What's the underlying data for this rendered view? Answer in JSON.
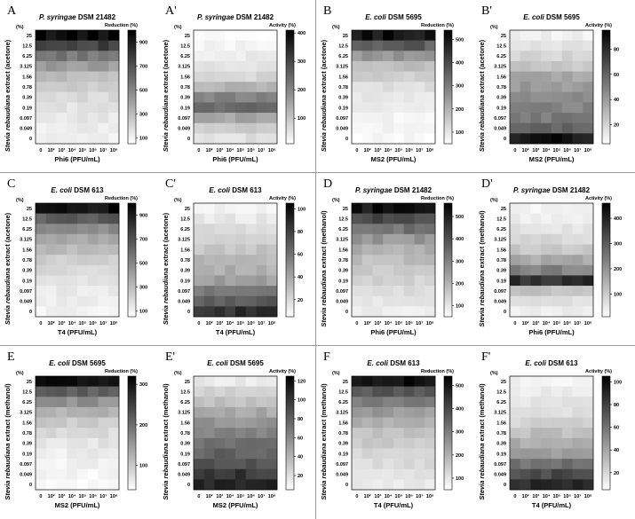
{
  "y_ticks": [
    "25",
    "12.5",
    "6.25",
    "3.125",
    "1.56",
    "0.78",
    "0.39",
    "0.19",
    "0.097",
    "0.049",
    "0"
  ],
  "x_ticks": [
    "0",
    "10²",
    "10³",
    "10⁴",
    "10⁵",
    "10⁶",
    "10⁷",
    "10⁸"
  ],
  "y_unit": "(%)",
  "chart_data": [
    {
      "type": "heatmap",
      "panel_label": "A",
      "title": "P. syringae DSM 21482",
      "xlabel": "Phi6 (PFU/mL)",
      "ylabel": "Stevia rebaudiana extract (acetone)",
      "colorbar_label": "Reduction (%)",
      "colorbar_ticks": [
        "900",
        "700",
        "500",
        "300",
        "100"
      ],
      "vmin": 50,
      "vmax": 1000,
      "row_values": [
        960,
        760,
        560,
        420,
        300,
        230,
        190,
        160,
        140,
        120,
        100
      ]
    },
    {
      "type": "heatmap",
      "panel_label": "A'",
      "title": "P. syringae DSM 21482",
      "xlabel": "Phi6 (PFU/mL)",
      "ylabel": "Stevia rebaudiana extract (acetone)",
      "colorbar_label": "Activity (%)",
      "colorbar_ticks": [
        "400",
        "300",
        "200",
        "100"
      ],
      "vmin": 10,
      "vmax": 410,
      "row_values": [
        20,
        30,
        40,
        55,
        75,
        130,
        200,
        240,
        150,
        90,
        60
      ]
    },
    {
      "type": "heatmap",
      "panel_label": "B",
      "title": "E. coli DSM 5695",
      "xlabel": "MS2 (PFU/mL)",
      "ylabel": "Stevia rebaudiana extract (acetone)",
      "colorbar_label": "Reduction (%)",
      "colorbar_ticks": [
        "500",
        "400",
        "300",
        "200",
        "100"
      ],
      "vmin": 50,
      "vmax": 540,
      "row_values": [
        500,
        360,
        250,
        180,
        140,
        110,
        95,
        85,
        75,
        70,
        60
      ]
    },
    {
      "type": "heatmap",
      "panel_label": "B'",
      "title": "E. coli DSM 5695",
      "xlabel": "MS2 (PFU/mL)",
      "ylabel": "Stevia rebaudiana extract (acetone)",
      "colorbar_label": "Activity (%)",
      "colorbar_ticks": [
        "80",
        "60",
        "40",
        "20"
      ],
      "vmin": 5,
      "vmax": 95,
      "row_values": [
        10,
        15,
        20,
        25,
        35,
        40,
        45,
        48,
        52,
        60,
        88
      ]
    },
    {
      "type": "heatmap",
      "panel_label": "C",
      "title": "E. coli DSM 613",
      "xlabel": "T4 (PFU/mL)",
      "ylabel": "Stevia rebaudiana extract (acetone)",
      "colorbar_label": "Reduction (%)",
      "colorbar_ticks": [
        "900",
        "700",
        "500",
        "300",
        "100"
      ],
      "vmin": 50,
      "vmax": 1000,
      "row_values": [
        950,
        650,
        480,
        380,
        300,
        240,
        200,
        160,
        130,
        110,
        95
      ]
    },
    {
      "type": "heatmap",
      "panel_label": "C'",
      "title": "E. coli DSM 613",
      "xlabel": "T4 (PFU/mL)",
      "ylabel": "Stevia rebaudiana extract (acetone)",
      "colorbar_label": "Activity (%)",
      "colorbar_ticks": [
        "100",
        "80",
        "60",
        "40",
        "20"
      ],
      "vmin": 5,
      "vmax": 105,
      "row_values": [
        10,
        14,
        18,
        22,
        28,
        32,
        36,
        42,
        55,
        70,
        85
      ]
    },
    {
      "type": "heatmap",
      "panel_label": "D",
      "title": "P. syringae DSM 21482",
      "xlabel": "Phi6 (PFU/mL)",
      "ylabel": "Stevia rebaudiana extract (methanol)",
      "colorbar_label": "Reduction (%)",
      "colorbar_ticks": [
        "500",
        "400",
        "300",
        "200",
        "100"
      ],
      "vmin": 50,
      "vmax": 560,
      "row_values": [
        520,
        420,
        330,
        260,
        210,
        180,
        160,
        140,
        120,
        100,
        90
      ]
    },
    {
      "type": "heatmap",
      "panel_label": "D'",
      "title": "P. syringae DSM 21482",
      "xlabel": "Phi6 (PFU/mL)",
      "ylabel": "Stevia rebaudiana extract (methanol)",
      "colorbar_label": "Activity (%)",
      "colorbar_ticks": [
        "400",
        "300",
        "200",
        "100"
      ],
      "vmin": 10,
      "vmax": 460,
      "row_values": [
        30,
        45,
        60,
        80,
        110,
        160,
        230,
        380,
        120,
        60,
        40
      ]
    },
    {
      "type": "heatmap",
      "panel_label": "E",
      "title": "E. coli DSM 5695",
      "xlabel": "MS2 (PFU/mL)",
      "ylabel": "Stevia rebaudiana extract (methanol)",
      "colorbar_label": "Reduction (%)",
      "colorbar_ticks": [
        "300",
        "200",
        "100"
      ],
      "vmin": 40,
      "vmax": 320,
      "row_values": [
        300,
        220,
        160,
        120,
        100,
        80,
        70,
        60,
        55,
        50,
        45
      ]
    },
    {
      "type": "heatmap",
      "panel_label": "E'",
      "title": "E. coli DSM 5695",
      "xlabel": "MS2 (PFU/mL)",
      "ylabel": "Stevia rebaudiana extract (methanol)",
      "colorbar_label": "Activity (%)",
      "colorbar_ticks": [
        "120",
        "100",
        "80",
        "60",
        "40",
        "20"
      ],
      "vmin": 5,
      "vmax": 125,
      "row_values": [
        15,
        25,
        35,
        45,
        55,
        62,
        70,
        78,
        88,
        98,
        110
      ]
    },
    {
      "type": "heatmap",
      "panel_label": "F",
      "title": "E. coli DSM 613",
      "xlabel": "T4 (PFU/mL)",
      "ylabel": "Stevia rebaudiana extract (methanol)",
      "colorbar_label": "Reduction (%)",
      "colorbar_ticks": [
        "500",
        "400",
        "300",
        "200",
        "100"
      ],
      "vmin": 50,
      "vmax": 540,
      "row_values": [
        520,
        380,
        300,
        240,
        200,
        170,
        150,
        130,
        120,
        105,
        95
      ]
    },
    {
      "type": "heatmap",
      "panel_label": "F'",
      "title": "E. coli DSM 613",
      "xlabel": "T4 (PFU/mL)",
      "ylabel": "Stevia rebaudiana extract (methanol)",
      "colorbar_label": "Activity (%)",
      "colorbar_ticks": [
        "100",
        "80",
        "60",
        "40",
        "20"
      ],
      "vmin": 5,
      "vmax": 105,
      "row_values": [
        10,
        12,
        15,
        18,
        22,
        30,
        38,
        45,
        60,
        75,
        90
      ]
    }
  ]
}
